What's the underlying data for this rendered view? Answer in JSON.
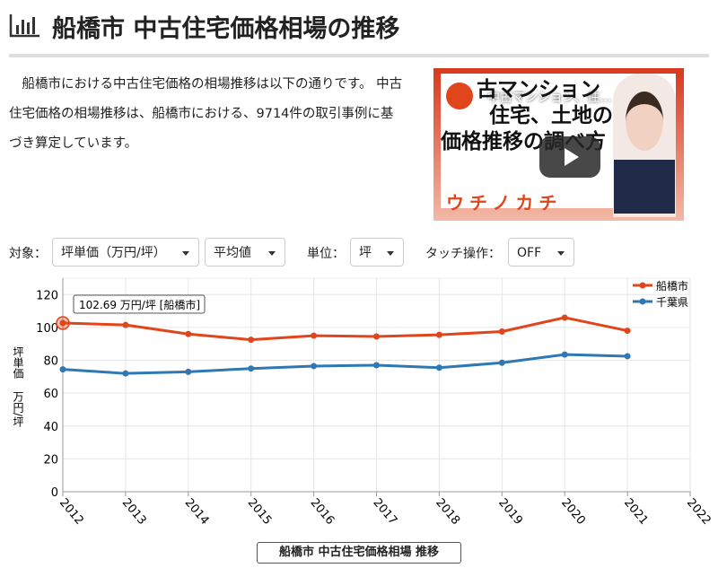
{
  "header": {
    "title": "船橋市 中古住宅価格相場の推移"
  },
  "intro": {
    "text": "船橋市における中古住宅価格の相場推移は以下の通りです。 中古住宅価格の相場推移は、船橋市における、9714件の取引事例に基づき算定しています。"
  },
  "video": {
    "overlay_title": "中古マンション、住...",
    "caption_lines": [
      "古マンション",
      "住宅、土地の",
      "価格推移の調べ方"
    ],
    "brand": "ウチノカチ"
  },
  "controls": {
    "target_label": "対象：",
    "target_value": "坪単価（万円/坪）",
    "stat_value": "平均値",
    "unit_label": "単位：",
    "unit_value": "坪",
    "touch_label": "タッチ操作：",
    "touch_value": "OFF"
  },
  "chart_data": {
    "type": "line",
    "title": "船橋市 中古住宅価格相場 推移",
    "ylabel": "坪単価",
    "yunit": "万円/坪",
    "x": [
      2012,
      2013,
      2014,
      2015,
      2016,
      2017,
      2018,
      2019,
      2020,
      2021
    ],
    "series": [
      {
        "name": "船橋市",
        "color": "#e0451b",
        "values": [
          102.69,
          101.5,
          96,
          92.5,
          95,
          94.5,
          95.5,
          97.5,
          106,
          98
        ]
      },
      {
        "name": "千葉県",
        "color": "#2f78b4",
        "values": [
          74.5,
          72,
          73,
          75,
          76.5,
          77,
          75.5,
          78.5,
          83.5,
          82.5
        ]
      }
    ],
    "xlim": [
      2012,
      2022
    ],
    "xticks": [
      2012,
      2013,
      2014,
      2015,
      2016,
      2017,
      2018,
      2019,
      2020,
      2021,
      2022
    ],
    "ylim": [
      0,
      130
    ],
    "yticks": [
      0,
      20,
      40,
      60,
      80,
      100,
      120
    ],
    "grid": true,
    "legend": "top-right",
    "annotation": "102.69 万円/坪 [船橋市]"
  }
}
